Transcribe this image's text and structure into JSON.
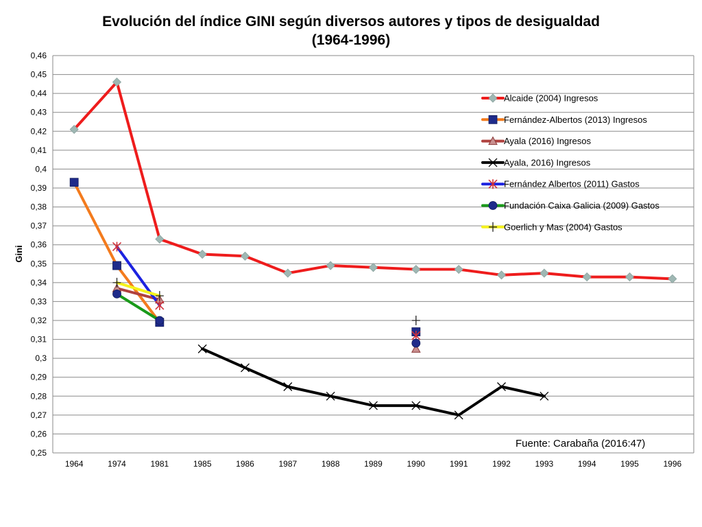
{
  "chart_data": {
    "type": "line",
    "title": "Evolución del índice GINI según diversos autores y tipos de desigualdad",
    "subtitle": "(1964-1996)",
    "xlabel": "",
    "ylabel": "Gini",
    "categories": [
      "1964",
      "1974",
      "1981",
      "1985",
      "1986",
      "1987",
      "1988",
      "1989",
      "1990",
      "1991",
      "1992",
      "1993",
      "1994",
      "1995",
      "1996"
    ],
    "ylim": [
      0.25,
      0.46
    ],
    "ystep": 0.01,
    "ytick_labels": [
      "0,25",
      "0,26",
      "0,27",
      "0,28",
      "0,29",
      "0,3",
      "0,31",
      "0,32",
      "0,33",
      "0,34",
      "0,35",
      "0,36",
      "0,37",
      "0,38",
      "0,39",
      "0,4",
      "0,41",
      "0,42",
      "0,43",
      "0,44",
      "0,45",
      "0,46"
    ],
    "grid": true,
    "legend_position": "right",
    "annotation": "Fuente: Carabaña (2016:47)",
    "series": [
      {
        "name": "Alcaide (2004) Ingresos",
        "color": "#ee1c1c",
        "marker": "diamond",
        "marker_color": "#9fb7b3",
        "values": [
          0.421,
          0.446,
          0.363,
          0.355,
          0.354,
          0.345,
          0.349,
          0.348,
          0.347,
          0.347,
          0.344,
          0.345,
          0.343,
          0.343,
          0.342
        ]
      },
      {
        "name": "Fernández-Albertos (2013) Ingresos",
        "color": "#f37b1d",
        "marker": "square",
        "marker_color": "#1f2b8a",
        "values": [
          0.393,
          0.349,
          0.319,
          null,
          null,
          null,
          null,
          null,
          0.314,
          null,
          null,
          null,
          null,
          null,
          null
        ]
      },
      {
        "name": "Ayala (2016) Ingresos",
        "color": "#b0413e",
        "marker": "triangle",
        "marker_color": "#c98f8f",
        "values": [
          null,
          0.337,
          0.331,
          null,
          null,
          null,
          null,
          null,
          0.305,
          null,
          null,
          null,
          null,
          null,
          null
        ]
      },
      {
        "name": "Ayala, 2016) Ingresos",
        "color": "#000000",
        "marker": "x",
        "marker_color": "#000000",
        "values": [
          null,
          null,
          null,
          0.305,
          0.295,
          0.285,
          0.28,
          0.275,
          0.275,
          0.27,
          0.285,
          0.28,
          null,
          null,
          null
        ]
      },
      {
        "name": "Fernández Albertos (2011) Gastos",
        "color": "#1c22e0",
        "marker": "star",
        "marker_color": "#d0303a",
        "values": [
          null,
          0.359,
          0.328,
          null,
          null,
          null,
          null,
          null,
          0.312,
          null,
          null,
          null,
          null,
          null,
          null
        ]
      },
      {
        "name": "Fundación Caixa Galicia (2009) Gastos",
        "color": "#1a9a1a",
        "marker": "circle",
        "marker_color": "#1f2b8a",
        "values": [
          null,
          0.334,
          0.32,
          null,
          null,
          null,
          null,
          null,
          0.308,
          null,
          null,
          null,
          null,
          null,
          null
        ]
      },
      {
        "name": "Goerlich y Mas  (2004) Gastos",
        "color": "#f5f21c",
        "marker": "plus",
        "marker_color": "#222222",
        "values": [
          null,
          0.34,
          0.333,
          null,
          null,
          null,
          null,
          null,
          0.32,
          null,
          null,
          null,
          null,
          null,
          null
        ]
      }
    ]
  }
}
